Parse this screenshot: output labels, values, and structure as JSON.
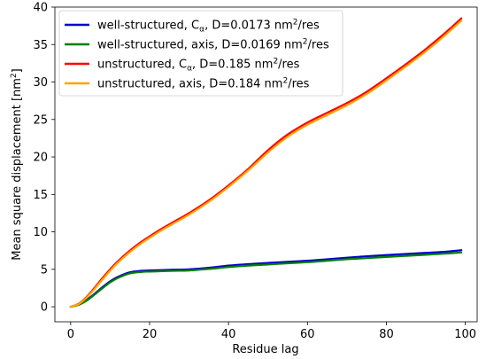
{
  "chart_data": {
    "type": "line",
    "xlabel": "Residue lag",
    "ylabel": "Mean square displacement [nm²]",
    "xlim": [
      -4,
      103
    ],
    "ylim": [
      -2,
      40
    ],
    "xticks": [
      0,
      20,
      40,
      60,
      80,
      100
    ],
    "yticks": [
      0,
      5,
      10,
      15,
      20,
      25,
      30,
      35,
      40
    ],
    "grid": false,
    "legend_position": "top-left",
    "x": [
      0,
      2,
      4,
      6,
      8,
      10,
      12,
      15,
      18,
      20,
      23,
      26,
      30,
      35,
      40,
      45,
      50,
      55,
      60,
      65,
      70,
      75,
      80,
      85,
      90,
      95,
      99
    ],
    "series": [
      {
        "name": "well-structured, Cα, D=0.0173 nm²/res",
        "legend_main": "well-structured, C",
        "legend_sub": "α",
        "legend_mid": ", D=0.0173 nm",
        "legend_sup": "2",
        "legend_end": "/res",
        "color": "#0000cc",
        "values": [
          0,
          0.3,
          0.9,
          1.7,
          2.6,
          3.4,
          4.0,
          4.6,
          4.8,
          4.85,
          4.9,
          4.95,
          5.0,
          5.2,
          5.5,
          5.7,
          5.85,
          6.0,
          6.15,
          6.35,
          6.55,
          6.75,
          6.9,
          7.05,
          7.2,
          7.35,
          7.55
        ]
      },
      {
        "name": "well-structured, axis, D=0.0169 nm²/res",
        "legend_main": "well-structured, axis, D=0.0169 nm",
        "legend_sub": "",
        "legend_mid": "",
        "legend_sup": "2",
        "legend_end": "/res",
        "color": "#008000",
        "values": [
          0,
          0.25,
          0.8,
          1.6,
          2.45,
          3.25,
          3.85,
          4.45,
          4.65,
          4.7,
          4.75,
          4.8,
          4.85,
          5.05,
          5.3,
          5.5,
          5.65,
          5.8,
          5.95,
          6.15,
          6.35,
          6.5,
          6.65,
          6.8,
          6.95,
          7.1,
          7.25
        ]
      },
      {
        "name": "unstructured, Cα, D=0.185 nm²/res",
        "legend_main": "unstructured, C",
        "legend_sub": "α",
        "legend_mid": ", D=0.185 nm",
        "legend_sup": "2",
        "legend_end": "/res",
        "color": "#ff0000",
        "values": [
          0,
          0.4,
          1.3,
          2.5,
          3.8,
          5.0,
          6.1,
          7.5,
          8.7,
          9.4,
          10.4,
          11.3,
          12.5,
          14.2,
          16.2,
          18.4,
          20.9,
          23.0,
          24.6,
          25.9,
          27.2,
          28.7,
          30.5,
          32.4,
          34.4,
          36.6,
          38.5
        ]
      },
      {
        "name": "unstructured, axis, D=0.184 nm²/res",
        "legend_main": "unstructured, axis, D=0.184 nm",
        "legend_sub": "",
        "legend_mid": "",
        "legend_sup": "2",
        "legend_end": "/res",
        "color": "#ffa500",
        "values": [
          0,
          0.35,
          1.2,
          2.35,
          3.6,
          4.8,
          5.9,
          7.3,
          8.5,
          9.2,
          10.2,
          11.1,
          12.3,
          14.0,
          16.0,
          18.2,
          20.6,
          22.7,
          24.3,
          25.6,
          26.9,
          28.4,
          30.2,
          32.1,
          34.1,
          36.3,
          38.2
        ]
      }
    ]
  }
}
